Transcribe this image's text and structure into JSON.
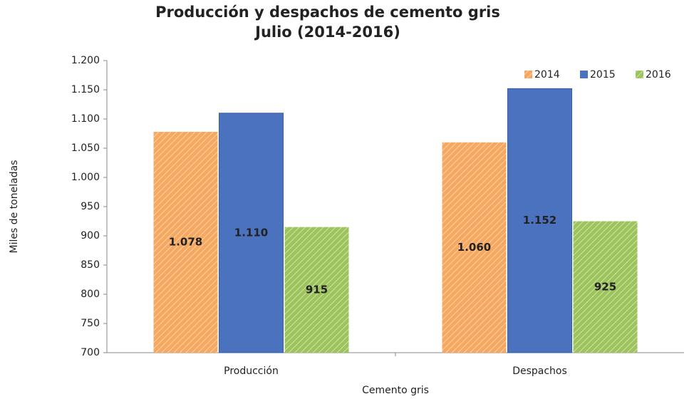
{
  "chart_data": {
    "type": "bar",
    "title": "Producción y despachos de cemento gris",
    "subtitle": "Julio (2014-2016)",
    "y_label": "Miles de toneladas",
    "x_label": "Cemento gris",
    "categories": [
      "Producción",
      "Despachos"
    ],
    "series": [
      {
        "name": "2014",
        "color": "#f7a860",
        "values": [
          1078,
          1060
        ],
        "value_labels": [
          "1.078",
          "1.060"
        ]
      },
      {
        "name": "2015",
        "color": "#4a72bf",
        "values": [
          1110,
          1152
        ],
        "value_labels": [
          "1.110",
          "1.152"
        ]
      },
      {
        "name": "2016",
        "color": "#9dc35c",
        "values": [
          915,
          925
        ]
      }
    ],
    "ylim": [
      700,
      1200
    ],
    "yticks": [
      700,
      750,
      800,
      850,
      900,
      950,
      {
        "value": 1000,
        "label": "1.000"
      },
      {
        "value": 1050,
        "label": "1.050"
      },
      {
        "value": 1100,
        "label": "1.100"
      },
      {
        "value": 1150,
        "label": "1.150"
      },
      {
        "value": 1200,
        "label": "1.200"
      }
    ],
    "legend": "top-right"
  }
}
